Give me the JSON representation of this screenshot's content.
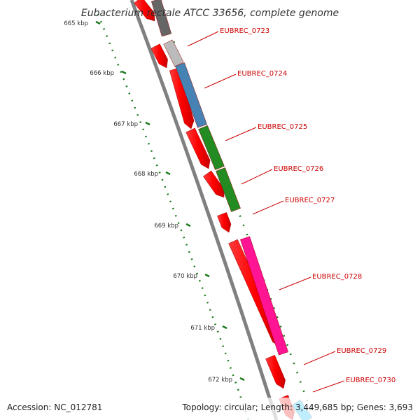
{
  "title": "Eubacterium rectale ATCC 33656, complete genome",
  "footer": {
    "accession": "Accession: NC_012781",
    "summary": "Topology: circular; Length: 3,449,685 bp; Genes: 3,693"
  },
  "ticks": [
    "665 kbp",
    "666 kbp",
    "667 kbp",
    "668 kbp",
    "669 kbp",
    "670 kbp",
    "671 kbp",
    "672 kbp"
  ],
  "genes": [
    {
      "id": "EUBREC_0723",
      "color": "#ff0000",
      "cog_color": "#bbbbbb"
    },
    {
      "id": "EUBREC_0724",
      "color": "#ff0000",
      "cog_color": "#4682b4"
    },
    {
      "id": "EUBREC_0725",
      "color": "#ff0000",
      "cog_color": "#228b22"
    },
    {
      "id": "EUBREC_0726",
      "color": "#ff0000",
      "cog_color": "#228b22"
    },
    {
      "id": "EUBREC_0727",
      "color": "#ff0000",
      "cog_color": ""
    },
    {
      "id": "EUBREC_0728",
      "color": "#ff0000",
      "cog_color": "#ff1493"
    },
    {
      "id": "EUBREC_0729",
      "color": "#ff0000",
      "cog_color": ""
    },
    {
      "id": "EUBREC_0730",
      "color": "#ff0000",
      "cog_color": "#00bfff"
    }
  ],
  "colors": {
    "backbone": "#808080",
    "cds": "#ff0000",
    "label": "#cc0000",
    "tick": "#006400",
    "dark_cog": "#666666"
  }
}
